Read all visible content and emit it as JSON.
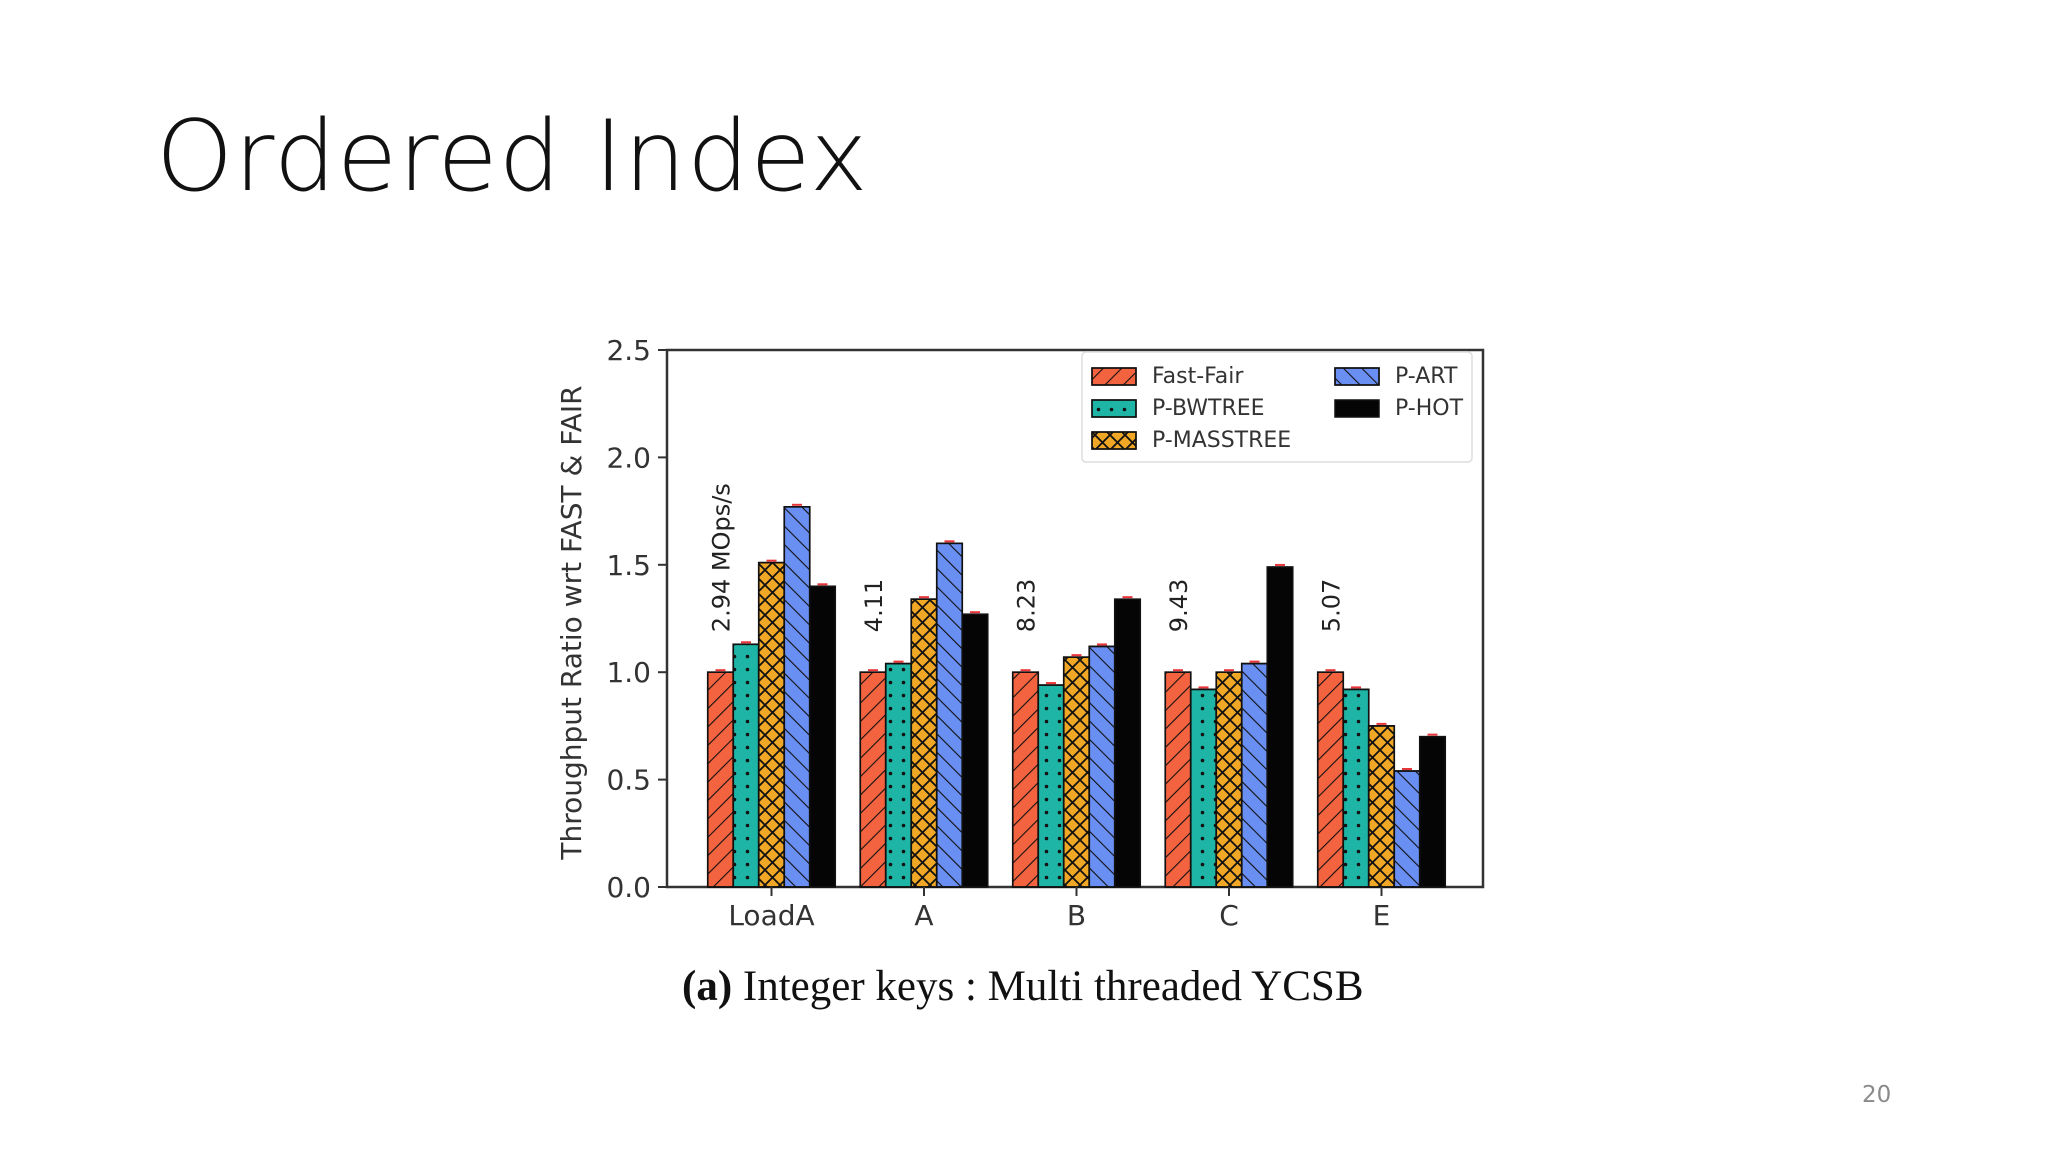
{
  "slide": {
    "title": "Ordered Index",
    "page_number": "20",
    "caption_bold": "(a)",
    "caption_text": "Integer keys : Multi threaded YCSB"
  },
  "chart_data": {
    "type": "bar",
    "title": "",
    "xlabel": "",
    "ylabel": "Throughput Ratio wrt FAST & FAIR",
    "ylim": [
      0,
      2.5
    ],
    "yticks": [
      "0.0",
      "0.5",
      "1.0",
      "1.5",
      "2.0",
      "2.5"
    ],
    "categories": [
      "LoadA",
      "A",
      "B",
      "C",
      "E"
    ],
    "grid": false,
    "legend_position": "top-right",
    "series": [
      {
        "name": "Fast-Fair",
        "color": "#f4633f",
        "pattern": "diagonal-hatch",
        "values": [
          1.0,
          1.0,
          1.0,
          1.0,
          1.0
        ]
      },
      {
        "name": "P-BWTREE",
        "color": "#1fb5a6",
        "pattern": "dots",
        "values": [
          1.13,
          1.04,
          0.94,
          0.92,
          0.92
        ]
      },
      {
        "name": "P-MASSTREE",
        "color": "#f0a725",
        "pattern": "cross-hatch",
        "values": [
          1.51,
          1.34,
          1.07,
          1.0,
          0.75
        ]
      },
      {
        "name": "P-ART",
        "color": "#6a8ff2",
        "pattern": "back-diagonal-hatch",
        "values": [
          1.77,
          1.6,
          1.12,
          1.04,
          0.54
        ]
      },
      {
        "name": "P-HOT",
        "color": "#050505",
        "pattern": "solid",
        "values": [
          1.4,
          1.27,
          1.34,
          1.49,
          0.7
        ]
      }
    ],
    "annotations": [
      "2.94  MOps/s",
      "4.11",
      "8.23",
      "9.43",
      "5.07"
    ],
    "error_bar_color": "#e8353a"
  }
}
